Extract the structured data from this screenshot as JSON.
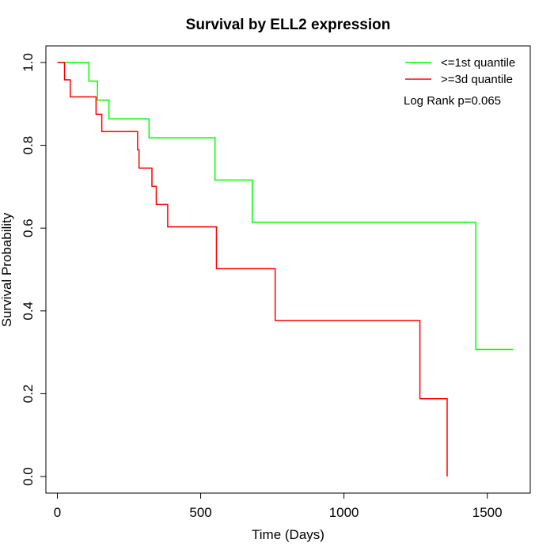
{
  "chart_data": {
    "type": "line",
    "step": true,
    "title": "Survival by ELL2 expression",
    "xlabel": "Time (Days)",
    "ylabel": "Survival Probability",
    "xlim": [
      -40,
      1650
    ],
    "ylim": [
      -0.04,
      1.04
    ],
    "xticks": [
      0,
      500,
      1000,
      1500
    ],
    "xtick_labels": [
      "0",
      "500",
      "1000",
      "1500"
    ],
    "yticks": [
      0.0,
      0.2,
      0.4,
      0.6,
      0.8,
      1.0
    ],
    "ytick_labels": [
      "0.0",
      "0.2",
      "0.4",
      "0.6",
      "0.8",
      "1.0"
    ],
    "grid": false,
    "legend_position": "top-right",
    "annotation": "Log Rank p=0.065",
    "series": [
      {
        "name": "<=1st quantile",
        "color": "#00ff00",
        "points": [
          [
            0,
            1.0
          ],
          [
            110,
            1.0
          ],
          [
            110,
            0.955
          ],
          [
            140,
            0.955
          ],
          [
            140,
            0.909
          ],
          [
            180,
            0.909
          ],
          [
            180,
            0.864
          ],
          [
            320,
            0.864
          ],
          [
            320,
            0.818
          ],
          [
            550,
            0.818
          ],
          [
            550,
            0.716
          ],
          [
            680,
            0.716
          ],
          [
            680,
            0.614
          ],
          [
            1460,
            0.614
          ],
          [
            1460,
            0.307
          ],
          [
            1590,
            0.307
          ]
        ]
      },
      {
        "name": ">=3d quantile",
        "color": "#ff0000",
        "points": [
          [
            0,
            1.0
          ],
          [
            25,
            1.0
          ],
          [
            25,
            0.958
          ],
          [
            45,
            0.958
          ],
          [
            45,
            0.917
          ],
          [
            135,
            0.917
          ],
          [
            135,
            0.875
          ],
          [
            155,
            0.875
          ],
          [
            155,
            0.833
          ],
          [
            280,
            0.833
          ],
          [
            280,
            0.789
          ],
          [
            285,
            0.789
          ],
          [
            285,
            0.745
          ],
          [
            330,
            0.745
          ],
          [
            330,
            0.701
          ],
          [
            345,
            0.701
          ],
          [
            345,
            0.657
          ],
          [
            385,
            0.657
          ],
          [
            385,
            0.603
          ],
          [
            555,
            0.603
          ],
          [
            555,
            0.502
          ],
          [
            760,
            0.502
          ],
          [
            760,
            0.377
          ],
          [
            1265,
            0.377
          ],
          [
            1265,
            0.188
          ],
          [
            1360,
            0.188
          ],
          [
            1360,
            0.0
          ]
        ]
      }
    ]
  }
}
